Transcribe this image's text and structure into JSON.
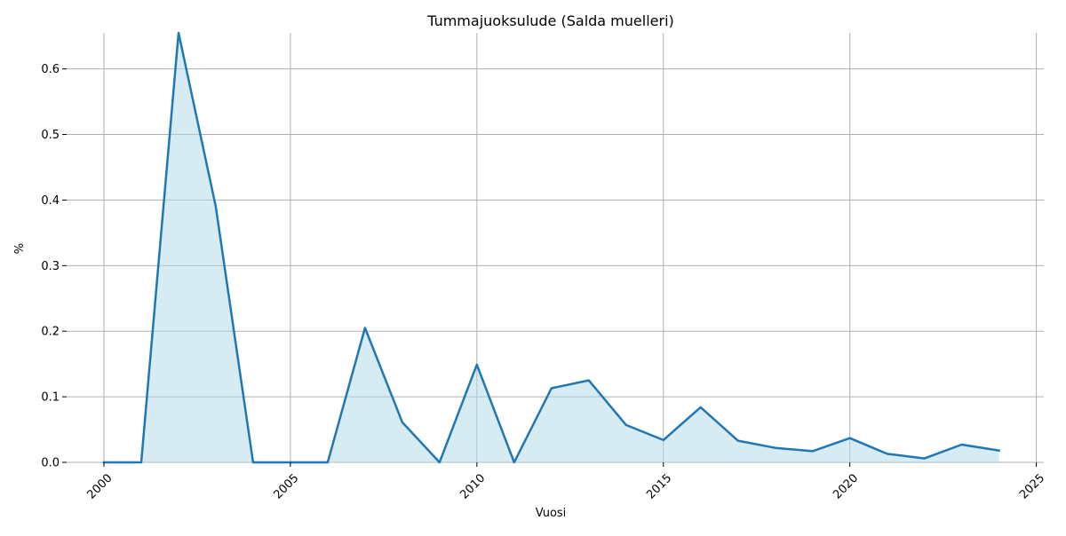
{
  "chart_data": {
    "type": "area",
    "title": "Tummajuoksulude (Salda muelleri)",
    "xlabel": "Vuosi",
    "ylabel": "%",
    "xlim": [
      1999.0,
      2025.2
    ],
    "ylim": [
      0,
      0.655
    ],
    "xticks": [
      2000,
      2005,
      2010,
      2015,
      2020,
      2025
    ],
    "yticks": [
      0.0,
      0.1,
      0.2,
      0.3,
      0.4,
      0.5,
      0.6
    ],
    "xtick_labels": [
      "2000",
      "2005",
      "2010",
      "2015",
      "2020",
      "2025"
    ],
    "ytick_labels": [
      "0.0",
      "0.1",
      "0.2",
      "0.3",
      "0.4",
      "0.5",
      "0.6"
    ],
    "grid": true,
    "legend": "none",
    "series": [
      {
        "x": [
          2000,
          2001,
          2002,
          2003,
          2004,
          2005,
          2006,
          2007,
          2008,
          2009,
          2010,
          2011,
          2012,
          2013,
          2014,
          2015,
          2016,
          2017,
          2018,
          2019,
          2020,
          2021,
          2022,
          2023,
          2024
        ],
        "values": [
          0.0,
          0.0,
          0.655,
          0.39,
          0.0,
          0.0,
          0.0,
          0.205,
          0.061,
          0.0,
          0.149,
          0.0,
          0.113,
          0.125,
          0.057,
          0.034,
          0.084,
          0.033,
          0.022,
          0.017,
          0.037,
          0.013,
          0.006,
          0.027,
          0.018
        ]
      }
    ],
    "colors": {
      "line": "#1f77b4",
      "fill": "#add8e6",
      "grid": "#b0b0b0"
    }
  }
}
